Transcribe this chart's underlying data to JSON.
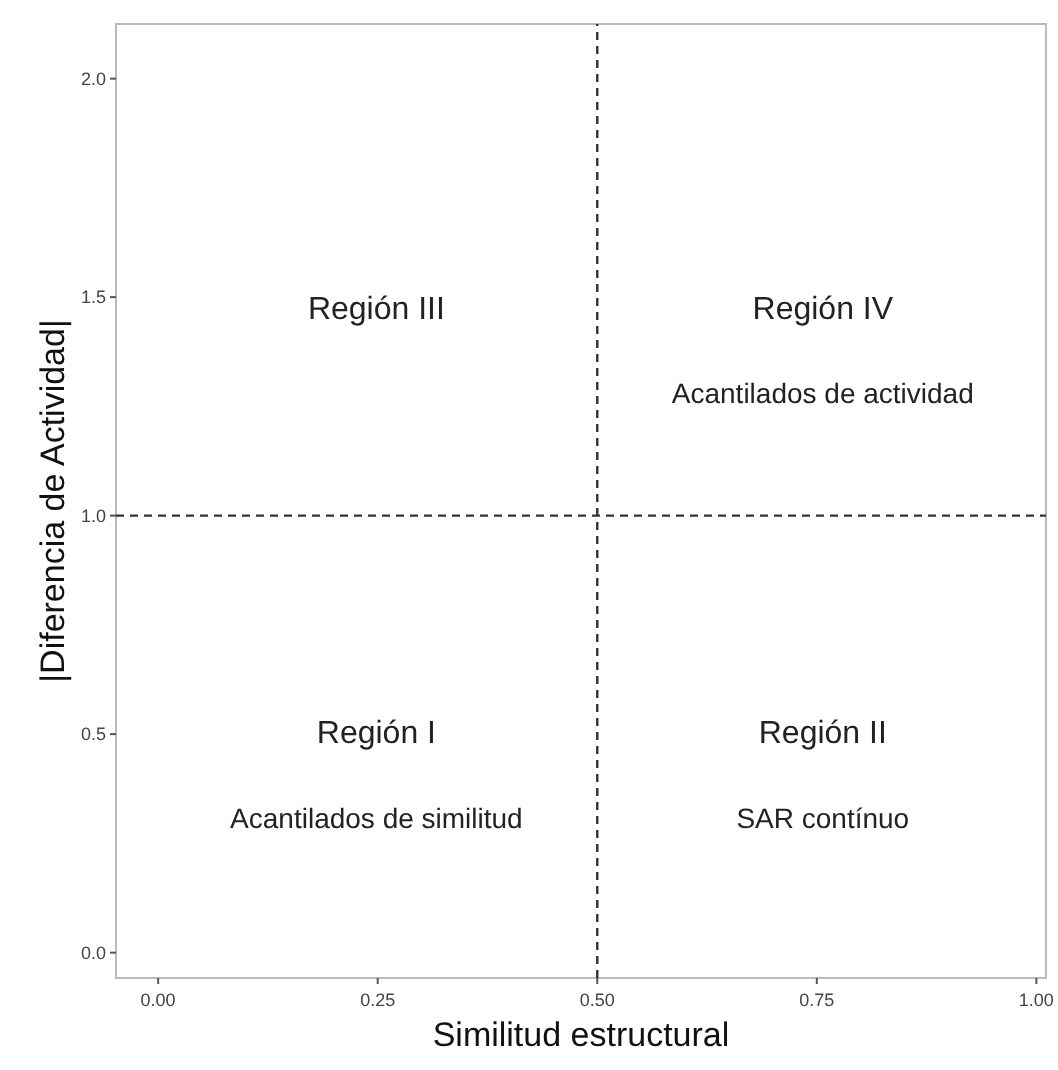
{
  "chart_data": {
    "type": "scatter",
    "xlabel": "Similitud estructural",
    "ylabel": "|Diferencia de Actividad|",
    "xlim": [
      -0.048,
      1.011
    ],
    "ylim": [
      -0.058,
      2.125
    ],
    "xticks": [
      {
        "value": 0,
        "label": "0.00"
      },
      {
        "value": 0.25,
        "label": "0.25"
      },
      {
        "value": 0.5,
        "label": "0.50"
      },
      {
        "value": 0.75,
        "label": "0.75"
      },
      {
        "value": 1,
        "label": "1.00"
      }
    ],
    "yticks": [
      {
        "value": 0,
        "label": "0.0"
      },
      {
        "value": 0.5,
        "label": "0.5"
      },
      {
        "value": 1,
        "label": "1.0"
      },
      {
        "value": 1.5,
        "label": "1.5"
      },
      {
        "value": 2,
        "label": "2.0"
      }
    ],
    "grid": false,
    "ref_lines": [
      {
        "axis": "x",
        "value": 0.5,
        "line_style": "dashed"
      },
      {
        "axis": "y",
        "value": 1.0,
        "line_style": "dashed"
      }
    ],
    "annotations": [
      "Región III",
      "Región IV",
      "Acantilados de actividad",
      "Región I",
      "Acantilados de similitud",
      "Región II",
      "SAR contínuo"
    ]
  }
}
